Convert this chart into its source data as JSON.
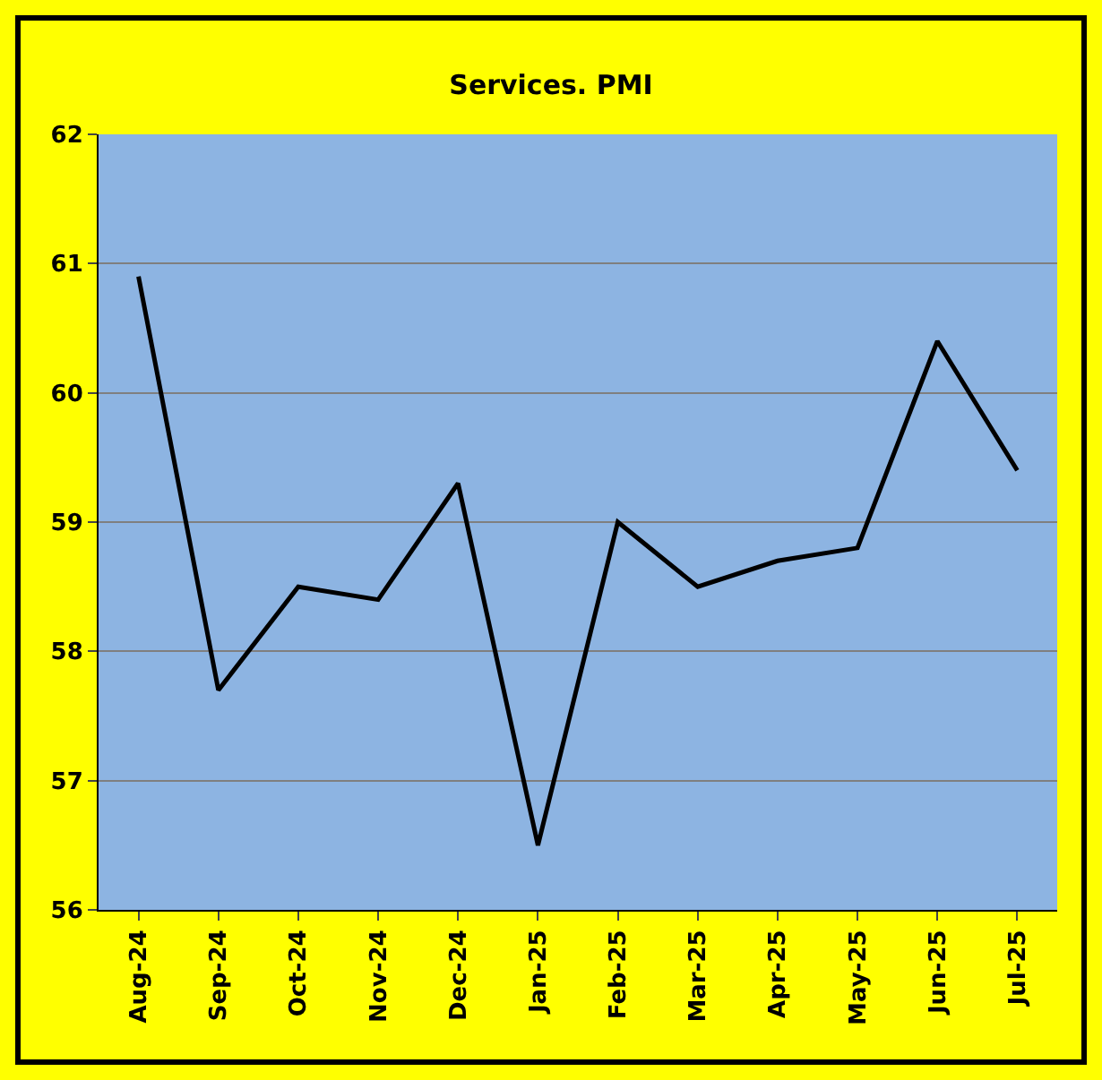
{
  "chart_data": {
    "type": "line",
    "title": "Services. PMI",
    "categories": [
      "Aug-24",
      "Sep-24",
      "Oct-24",
      "Nov-24",
      "Dec-24",
      "Jan-25",
      "Feb-25",
      "Mar-25",
      "Apr-25",
      "May-25",
      "Jun-25",
      "Jul-25"
    ],
    "series": [
      {
        "color": "#000000",
        "values": [
          60.9,
          57.7,
          58.5,
          58.4,
          59.3,
          56.5,
          59.0,
          58.5,
          58.7,
          58.8,
          60.4,
          59.4
        ]
      }
    ],
    "ylim": [
      56,
      62
    ],
    "yticks": [
      56,
      57,
      58,
      59,
      60,
      61,
      62
    ],
    "grid": "y",
    "legend": false,
    "marker": "none",
    "line_style": "solid"
  }
}
